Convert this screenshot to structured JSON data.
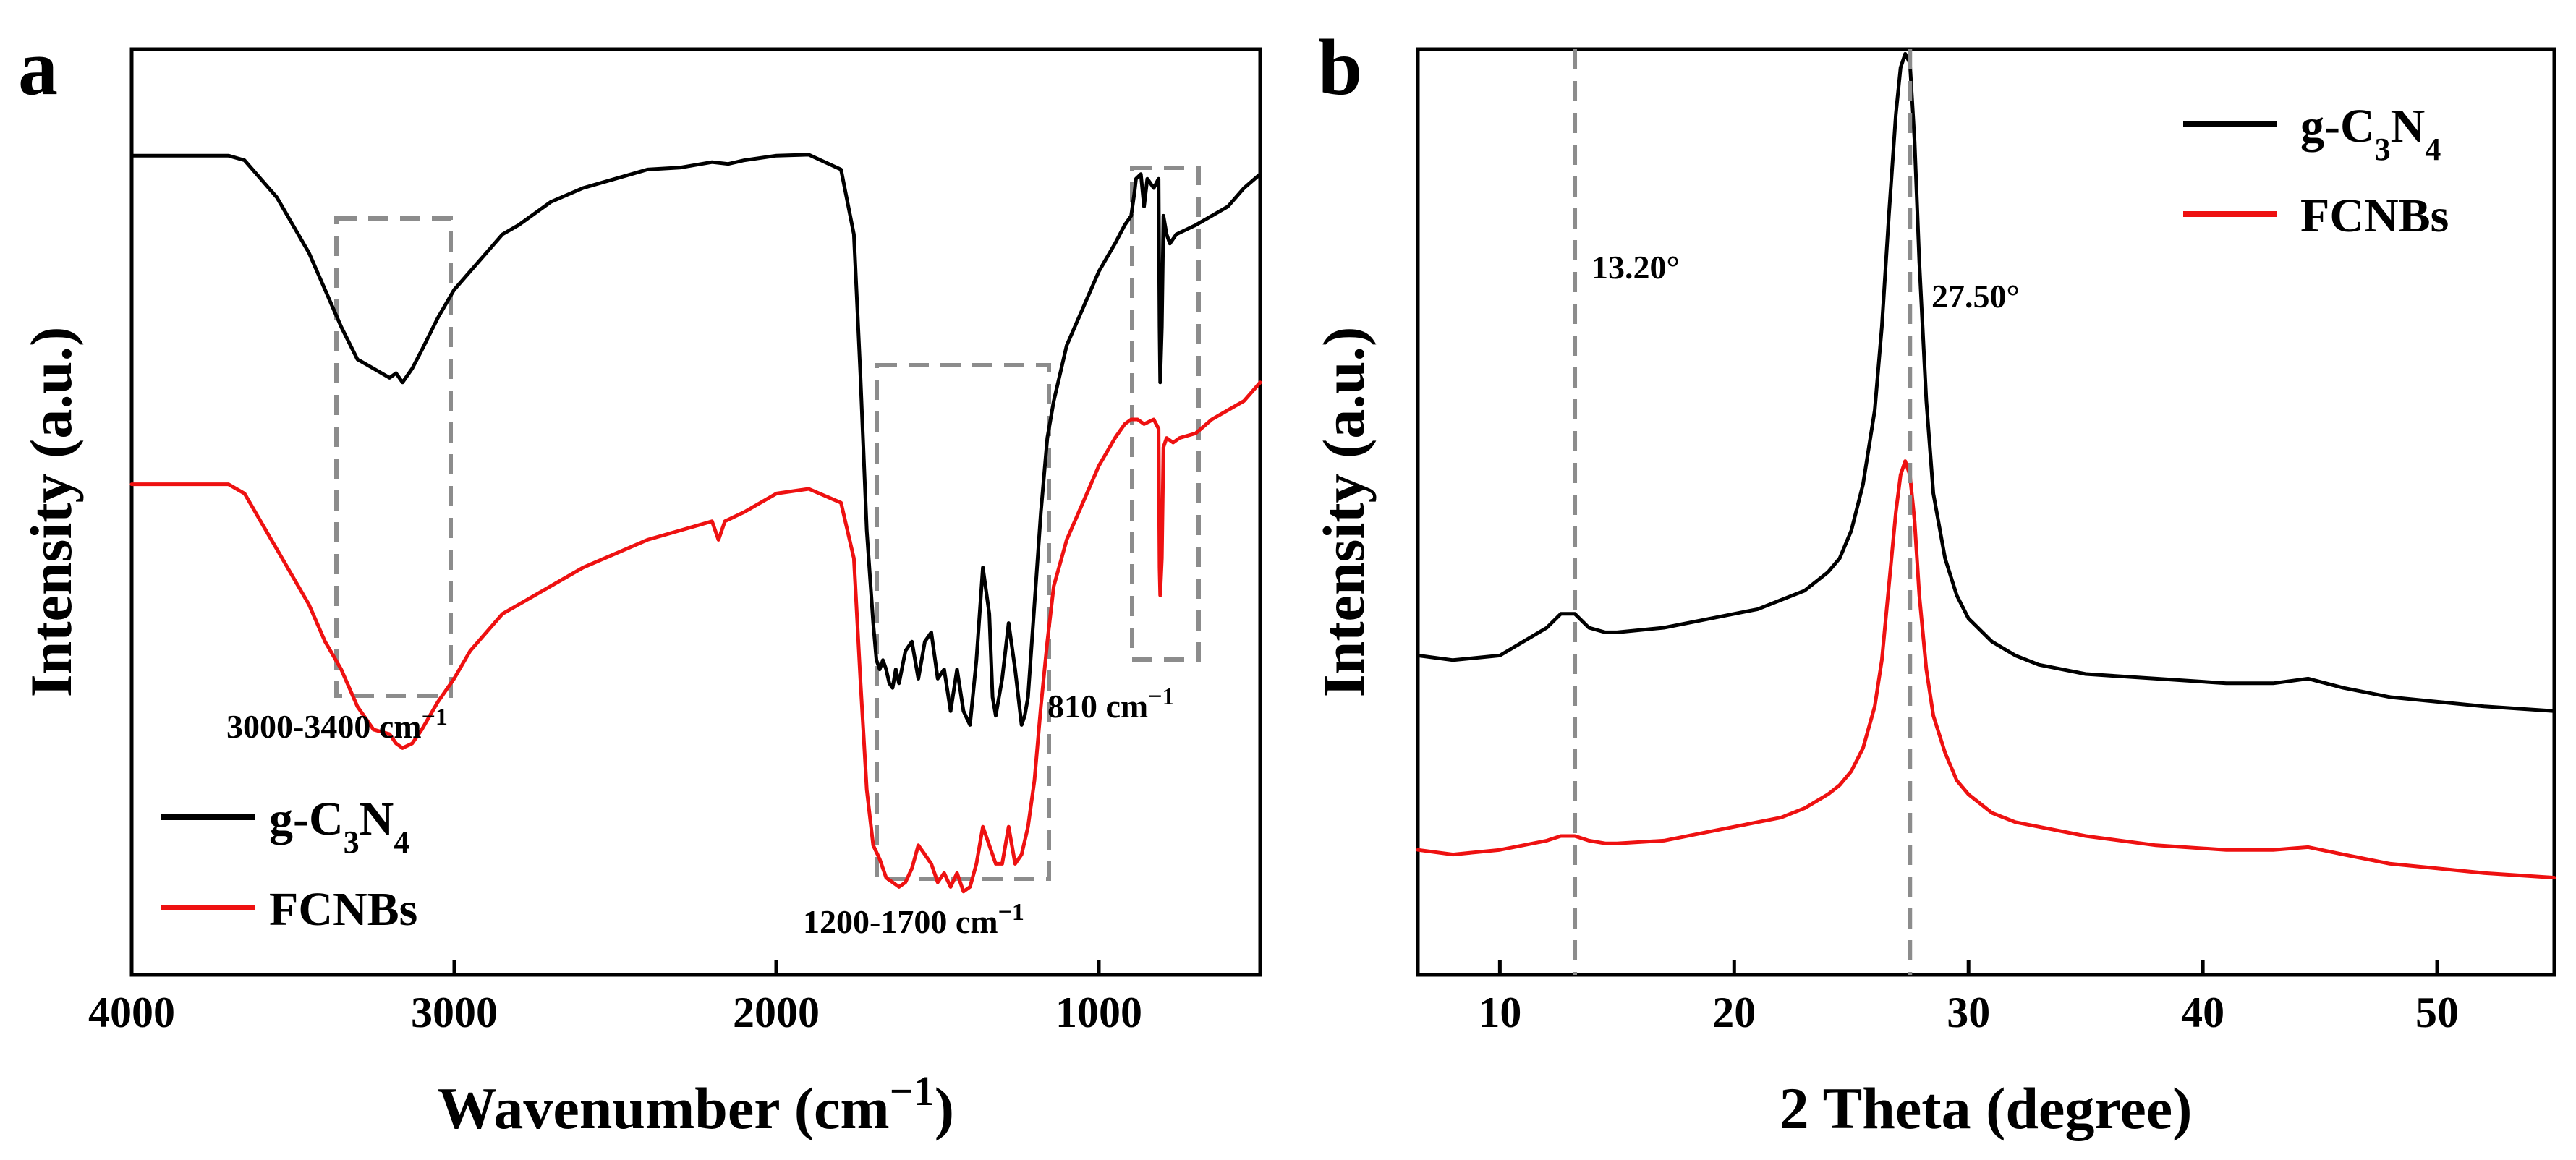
{
  "chart_data": [
    {
      "panel": "a",
      "type": "line",
      "title": "",
      "xlabel": "Wavenumber (cm",
      "xlabel_sup": "−1",
      "xlabel_close": ")",
      "ylabel": "Intensity (a.u.)",
      "xlim": [
        4000,
        500
      ],
      "ylim": [
        0,
        1
      ],
      "x_reversed": true,
      "xticks": [
        4000,
        3000,
        2000,
        1000
      ],
      "grid": false,
      "legend_position": "bottom-left",
      "series": [
        {
          "name": "g-C3N4",
          "legend_main": "g-C",
          "legend_sub1": "3",
          "legend_mid": "N",
          "legend_sub2": "4",
          "color": "#000000",
          "x": [
            4000,
            3700,
            3650,
            3550,
            3450,
            3400,
            3350,
            3300,
            3250,
            3200,
            3180,
            3160,
            3130,
            3100,
            3050,
            3000,
            2950,
            2900,
            2850,
            2800,
            2700,
            2600,
            2500,
            2400,
            2300,
            2200,
            2150,
            2100,
            2000,
            1900,
            1800,
            1760,
            1740,
            1720,
            1700,
            1690,
            1680,
            1670,
            1660,
            1650,
            1640,
            1630,
            1620,
            1600,
            1580,
            1560,
            1540,
            1520,
            1500,
            1480,
            1460,
            1440,
            1420,
            1400,
            1380,
            1360,
            1340,
            1330,
            1320,
            1300,
            1280,
            1260,
            1240,
            1230,
            1220,
            1200,
            1180,
            1160,
            1140,
            1100,
            1050,
            1000,
            950,
            920,
            900,
            890,
            885,
            870,
            860,
            850,
            830,
            815,
            812,
            810,
            805,
            800,
            790,
            780,
            760,
            700,
            650,
            600,
            550,
            500
          ],
          "y": [
            0.885,
            0.885,
            0.88,
            0.84,
            0.78,
            0.74,
            0.7,
            0.665,
            0.655,
            0.645,
            0.65,
            0.64,
            0.655,
            0.675,
            0.71,
            0.74,
            0.76,
            0.78,
            0.8,
            0.81,
            0.835,
            0.85,
            0.86,
            0.87,
            0.872,
            0.878,
            0.876,
            0.88,
            0.885,
            0.886,
            0.87,
            0.8,
            0.65,
            0.48,
            0.38,
            0.34,
            0.33,
            0.34,
            0.33,
            0.315,
            0.31,
            0.33,
            0.315,
            0.35,
            0.36,
            0.32,
            0.36,
            0.37,
            0.32,
            0.33,
            0.285,
            0.33,
            0.285,
            0.27,
            0.34,
            0.44,
            0.39,
            0.3,
            0.28,
            0.32,
            0.38,
            0.33,
            0.27,
            0.28,
            0.3,
            0.4,
            0.5,
            0.58,
            0.62,
            0.68,
            0.72,
            0.76,
            0.79,
            0.81,
            0.82,
            0.845,
            0.86,
            0.865,
            0.83,
            0.86,
            0.85,
            0.86,
            0.7,
            0.64,
            0.7,
            0.82,
            0.8,
            0.79,
            0.8,
            0.81,
            0.82,
            0.83,
            0.85,
            0.865
          ]
        },
        {
          "name": "FCNBs",
          "legend_main": "FCNBs",
          "color": "#ee1111",
          "x": [
            4000,
            3700,
            3650,
            3550,
            3450,
            3400,
            3350,
            3300,
            3250,
            3200,
            3180,
            3160,
            3130,
            3100,
            3050,
            3000,
            2950,
            2900,
            2850,
            2800,
            2700,
            2600,
            2500,
            2400,
            2300,
            2200,
            2180,
            2160,
            2100,
            2000,
            1900,
            1800,
            1760,
            1740,
            1720,
            1700,
            1680,
            1660,
            1640,
            1620,
            1600,
            1580,
            1560,
            1540,
            1520,
            1500,
            1480,
            1460,
            1440,
            1420,
            1400,
            1380,
            1360,
            1340,
            1320,
            1300,
            1280,
            1260,
            1240,
            1220,
            1200,
            1180,
            1160,
            1140,
            1100,
            1050,
            1000,
            950,
            920,
            900,
            880,
            860,
            830,
            815,
            812,
            810,
            805,
            800,
            790,
            770,
            750,
            700,
            650,
            600,
            550,
            500
          ],
          "y": [
            0.53,
            0.53,
            0.52,
            0.46,
            0.4,
            0.36,
            0.33,
            0.29,
            0.265,
            0.26,
            0.25,
            0.245,
            0.25,
            0.265,
            0.295,
            0.32,
            0.35,
            0.37,
            0.39,
            0.4,
            0.42,
            0.44,
            0.455,
            0.47,
            0.48,
            0.49,
            0.47,
            0.49,
            0.5,
            0.52,
            0.525,
            0.51,
            0.45,
            0.32,
            0.2,
            0.14,
            0.125,
            0.105,
            0.1,
            0.095,
            0.1,
            0.115,
            0.14,
            0.13,
            0.12,
            0.1,
            0.11,
            0.095,
            0.11,
            0.09,
            0.095,
            0.12,
            0.16,
            0.14,
            0.12,
            0.12,
            0.16,
            0.12,
            0.13,
            0.16,
            0.21,
            0.29,
            0.36,
            0.42,
            0.47,
            0.51,
            0.55,
            0.58,
            0.595,
            0.6,
            0.6,
            0.595,
            0.6,
            0.59,
            0.44,
            0.41,
            0.45,
            0.57,
            0.58,
            0.575,
            0.58,
            0.585,
            0.6,
            0.61,
            0.62,
            0.64
          ]
        }
      ],
      "annotations": [
        {
          "text": "3000-3400 cm",
          "sup": "−1"
        },
        {
          "text": "1200-1700 cm",
          "sup": "−1"
        },
        {
          "text": "810 cm",
          "sup": "−1"
        }
      ],
      "highlight_regions": [
        {
          "label": "3000-3400 cm−1",
          "x_range": [
            3400,
            3000
          ]
        },
        {
          "label": "1200-1700 cm−1",
          "x_range": [
            1700,
            1200
          ]
        },
        {
          "label": "810 cm−1",
          "x_range": [
            900,
            700
          ]
        }
      ]
    },
    {
      "panel": "b",
      "type": "line",
      "title": "",
      "xlabel": "2 Theta (degree)",
      "ylabel": "Intensity (a.u.)",
      "xlim": [
        6.5,
        55
      ],
      "ylim": [
        0,
        1
      ],
      "xticks": [
        10,
        20,
        30,
        40,
        50
      ],
      "grid": false,
      "legend_position": "top-right",
      "series": [
        {
          "name": "g-C3N4",
          "legend_main": "g-C",
          "legend_sub1": "3",
          "legend_mid": "N",
          "legend_sub2": "4",
          "color": "#000000",
          "x": [
            6.5,
            8,
            10,
            11,
            12,
            12.6,
            13.2,
            13.8,
            14.5,
            15,
            17,
            19,
            21,
            22,
            23,
            24,
            24.5,
            25,
            25.5,
            26,
            26.3,
            26.6,
            26.9,
            27.1,
            27.3,
            27.5,
            27.7,
            27.9,
            28.2,
            28.5,
            29,
            29.5,
            30,
            31,
            32,
            33,
            35,
            38,
            41,
            43,
            44.5,
            46,
            48,
            50,
            52,
            55
          ],
          "y": [
            0.345,
            0.34,
            0.345,
            0.36,
            0.375,
            0.39,
            0.39,
            0.375,
            0.37,
            0.37,
            0.375,
            0.385,
            0.395,
            0.405,
            0.415,
            0.435,
            0.45,
            0.48,
            0.53,
            0.61,
            0.7,
            0.82,
            0.93,
            0.98,
            0.995,
            0.985,
            0.9,
            0.77,
            0.62,
            0.52,
            0.45,
            0.41,
            0.385,
            0.36,
            0.345,
            0.335,
            0.325,
            0.32,
            0.315,
            0.315,
            0.32,
            0.31,
            0.3,
            0.295,
            0.29,
            0.285
          ]
        },
        {
          "name": "FCNBs",
          "legend_main": "FCNBs",
          "color": "#ee1111",
          "x": [
            6.5,
            8,
            10,
            11,
            12,
            12.6,
            13.2,
            13.8,
            14.5,
            15,
            17,
            19,
            21,
            22,
            23,
            24,
            24.5,
            25,
            25.5,
            26,
            26.3,
            26.6,
            26.9,
            27.1,
            27.3,
            27.5,
            27.7,
            27.9,
            28.2,
            28.5,
            29,
            29.5,
            30,
            31,
            32,
            33,
            35,
            38,
            41,
            43,
            44.5,
            46,
            48,
            50,
            52,
            55
          ],
          "y": [
            0.135,
            0.13,
            0.135,
            0.14,
            0.145,
            0.15,
            0.15,
            0.145,
            0.142,
            0.142,
            0.145,
            0.155,
            0.165,
            0.17,
            0.18,
            0.195,
            0.205,
            0.22,
            0.245,
            0.29,
            0.34,
            0.42,
            0.5,
            0.54,
            0.555,
            0.54,
            0.49,
            0.41,
            0.33,
            0.28,
            0.24,
            0.21,
            0.195,
            0.175,
            0.165,
            0.16,
            0.15,
            0.14,
            0.135,
            0.135,
            0.138,
            0.13,
            0.12,
            0.115,
            0.11,
            0.105
          ]
        }
      ],
      "annotations": [
        {
          "text": "13.20°"
        },
        {
          "text": "27.50°"
        }
      ],
      "reference_lines": [
        13.2,
        27.5
      ]
    }
  ]
}
